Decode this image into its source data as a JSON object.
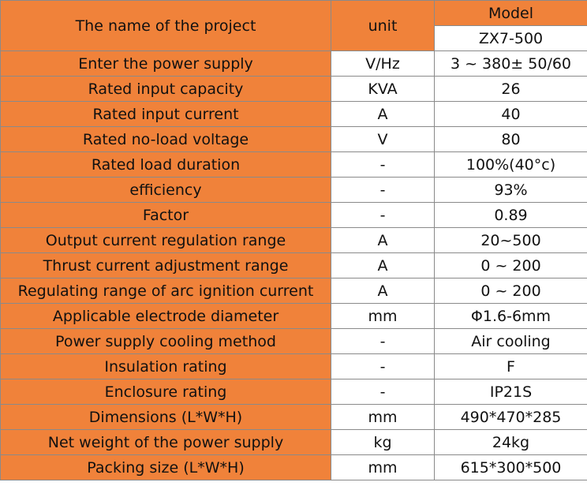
{
  "header": {
    "project_label": "The name of the project",
    "unit_label": "unit",
    "model_label": "Model",
    "model_name": "ZX7-500"
  },
  "rows": [
    {
      "name": "Enter the power supply",
      "unit": "V/Hz",
      "value": "3 ~ 380± 50/60"
    },
    {
      "name": "Rated input capacity",
      "unit": "KVA",
      "value": "26"
    },
    {
      "name": "Rated input current",
      "unit": "A",
      "value": "40"
    },
    {
      "name": "Rated no-load voltage",
      "unit": "V",
      "value": "80"
    },
    {
      "name": "Rated load duration",
      "unit": "-",
      "value": "100%(40°c)"
    },
    {
      "name": "efficiency",
      "unit": "-",
      "value": "93%"
    },
    {
      "name": "Factor",
      "unit": "-",
      "value": "0.89"
    },
    {
      "name": "Output current regulation range",
      "unit": "A",
      "value": "20~500"
    },
    {
      "name": "Thrust current adjustment range",
      "unit": "A",
      "value": "0 ~ 200"
    },
    {
      "name": "Regulating range of arc ignition current",
      "unit": "A",
      "value": "0 ~ 200"
    },
    {
      "name": "Applicable electrode diameter",
      "unit": "mm",
      "value": "Φ1.6-6mm"
    },
    {
      "name": "Power supply cooling method",
      "unit": "-",
      "value": "Air cooling"
    },
    {
      "name": "Insulation rating",
      "unit": "-",
      "value": "F"
    },
    {
      "name": "Enclosure rating",
      "unit": "-",
      "value": "IP21S"
    },
    {
      "name": "Dimensions (L*W*H)",
      "unit": "mm",
      "value": "490*470*285"
    },
    {
      "name": "Net weight of the power supply",
      "unit": "kg",
      "value": "24kg"
    },
    {
      "name": "Packing size (L*W*H)",
      "unit": "mm",
      "value": "615*300*500"
    }
  ],
  "colors": {
    "orange_cell": "#f0823a",
    "white_cell": "#ffffff",
    "border": "#8a8a8a"
  }
}
